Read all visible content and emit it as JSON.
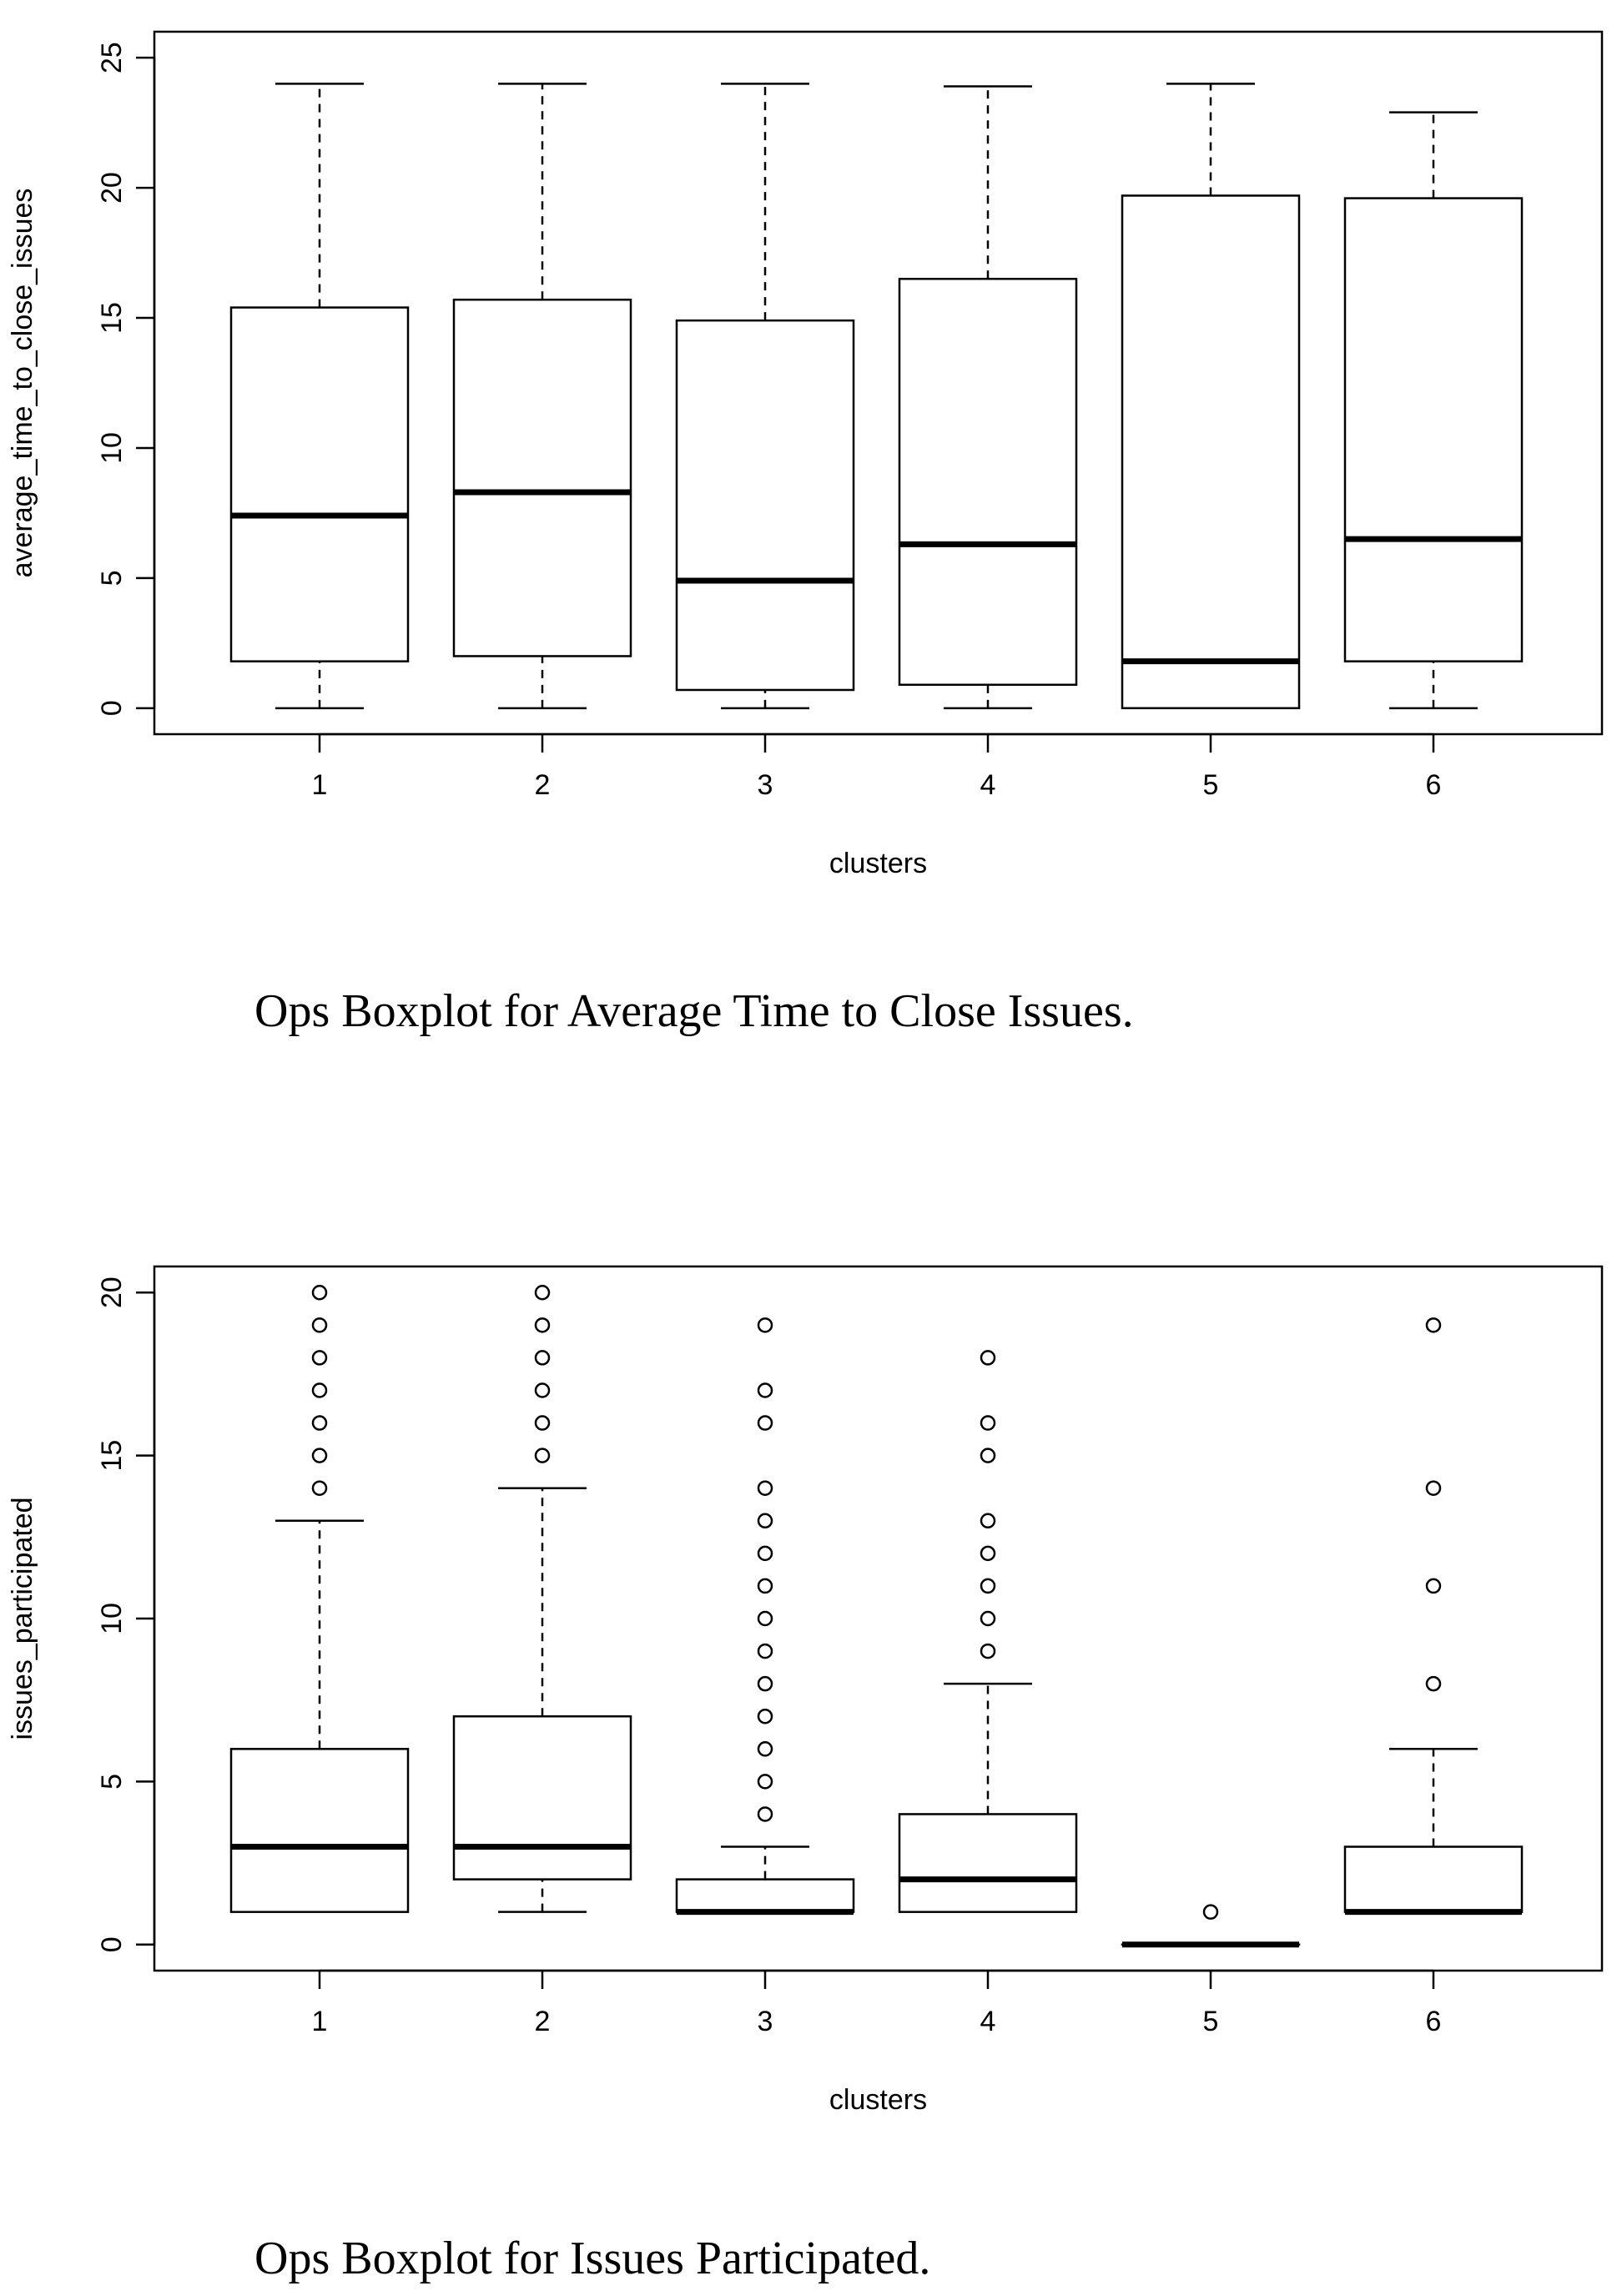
{
  "chart_data": [
    {
      "type": "box",
      "caption": "Ops Boxplot for Average Time to Close Issues.",
      "xlabel": "clusters",
      "ylabel": "average_time_to_close_issues",
      "categories": [
        "1",
        "2",
        "3",
        "4",
        "5",
        "6"
      ],
      "yticks": [
        0,
        5,
        10,
        15,
        20,
        25
      ],
      "ylim": [
        -1,
        26
      ],
      "boxes": [
        {
          "whisker_low": 0,
          "q1": 1.8,
          "median": 7.4,
          "q3": 15.4,
          "whisker_high": 24,
          "outliers": []
        },
        {
          "whisker_low": 0,
          "q1": 2.0,
          "median": 8.3,
          "q3": 15.7,
          "whisker_high": 24,
          "outliers": []
        },
        {
          "whisker_low": 0,
          "q1": 0.7,
          "median": 4.9,
          "q3": 14.9,
          "whisker_high": 24,
          "outliers": []
        },
        {
          "whisker_low": 0,
          "q1": 0.9,
          "median": 6.3,
          "q3": 16.5,
          "whisker_high": 23.9,
          "outliers": []
        },
        {
          "whisker_low": 0,
          "q1": 0.0,
          "median": 1.8,
          "q3": 19.7,
          "whisker_high": 24,
          "outliers": []
        },
        {
          "whisker_low": 0,
          "q1": 1.8,
          "median": 6.5,
          "q3": 19.6,
          "whisker_high": 22.9,
          "outliers": []
        }
      ]
    },
    {
      "type": "box",
      "caption": "Ops Boxplot for Issues Participated.",
      "xlabel": "clusters",
      "ylabel": "issues_participated",
      "categories": [
        "1",
        "2",
        "3",
        "4",
        "5",
        "6"
      ],
      "yticks": [
        0,
        5,
        10,
        15,
        20
      ],
      "ylim": [
        -0.8,
        20.8
      ],
      "boxes": [
        {
          "whisker_low": 1,
          "q1": 1,
          "median": 3,
          "q3": 6,
          "whisker_high": 13,
          "outliers": [
            14,
            15,
            16,
            17,
            18,
            19,
            20
          ]
        },
        {
          "whisker_low": 1,
          "q1": 2,
          "median": 3,
          "q3": 7,
          "whisker_high": 14,
          "outliers": [
            15,
            16,
            17,
            18,
            19,
            20
          ]
        },
        {
          "whisker_low": 1,
          "q1": 1,
          "median": 1,
          "q3": 2,
          "whisker_high": 3,
          "outliers": [
            4,
            5,
            6,
            7,
            8,
            9,
            10,
            11,
            12,
            13,
            14,
            16,
            17,
            19
          ]
        },
        {
          "whisker_low": 1,
          "q1": 1,
          "median": 2,
          "q3": 4,
          "whisker_high": 8,
          "outliers": [
            9,
            10,
            11,
            12,
            13,
            15,
            16,
            18
          ]
        },
        {
          "whisker_low": 0,
          "q1": 0,
          "median": 0,
          "q3": 0,
          "whisker_high": 0,
          "outliers": [
            1
          ]
        },
        {
          "whisker_low": 1,
          "q1": 1,
          "median": 1,
          "q3": 3,
          "whisker_high": 6,
          "outliers": [
            8,
            11,
            14,
            19
          ]
        }
      ]
    }
  ]
}
